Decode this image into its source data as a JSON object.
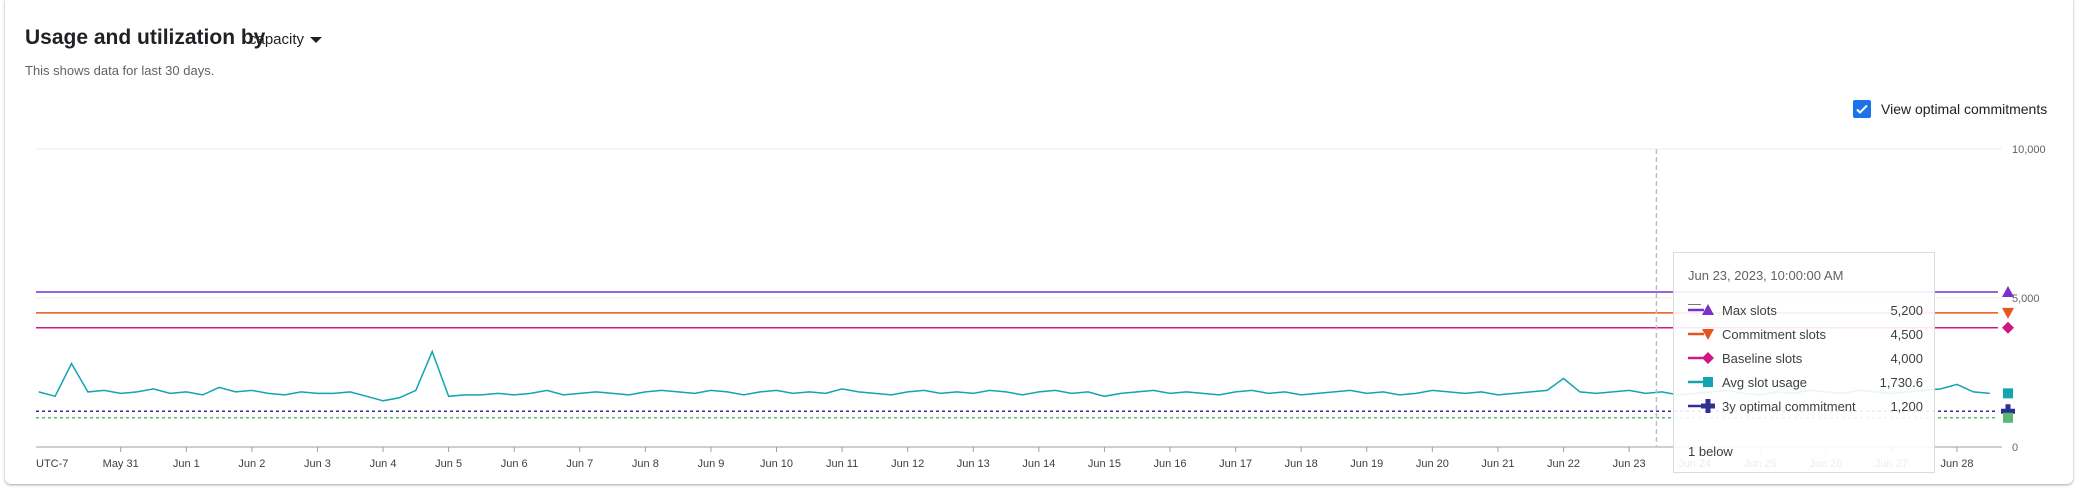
{
  "header": {
    "title": "Usage and utilization by",
    "dimension": "capacity",
    "subtitle": "This shows data for last 30 days."
  },
  "controls": {
    "view_optimal_label": "View optimal commitments",
    "view_optimal_checked": true
  },
  "tooltip": {
    "date": "Jun 23, 2023, 10:00:00 AM",
    "separator": "—",
    "rows": [
      {
        "name": "Max slots",
        "value": "5,200",
        "color": "#7b2fcf",
        "marker": "triangle-up"
      },
      {
        "name": "Commitment slots",
        "value": "4,500",
        "color": "#e8541e",
        "marker": "triangle-down"
      },
      {
        "name": "Baseline slots",
        "value": "4,000",
        "color": "#d01884",
        "marker": "diamond"
      },
      {
        "name": "Avg slot usage",
        "value": "1,730.6",
        "color": "#12a4af",
        "marker": "square"
      },
      {
        "name": "3y optimal commitment",
        "value": "1,200",
        "color": "#2e3192",
        "marker": "plus"
      }
    ],
    "more": "1 below"
  },
  "chart_data": {
    "type": "line",
    "timezone_label": "UTC-7",
    "x_tick_labels": [
      "May 31",
      "Jun 1",
      "Jun 2",
      "Jun 3",
      "Jun 4",
      "Jun 5",
      "Jun 6",
      "Jun 7",
      "Jun 8",
      "Jun 9",
      "Jun 10",
      "Jun 11",
      "Jun 12",
      "Jun 13",
      "Jun 14",
      "Jun 15",
      "Jun 16",
      "Jun 17",
      "Jun 18",
      "Jun 19",
      "Jun 20",
      "Jun 21",
      "Jun 22",
      "Jun 23",
      "Jun 24",
      "Jun 25",
      "Jun 26",
      "Jun 27",
      "Jun 28"
    ],
    "y_ticks": [
      0,
      5000,
      10000
    ],
    "y_tick_labels": [
      "0",
      "5,000",
      "10,000"
    ],
    "ylim": [
      0,
      10000
    ],
    "xlim": [
      "2023-05-29T17:00",
      "2023-06-28T15:00"
    ],
    "grid": true,
    "series": [
      {
        "name": "Max slots",
        "color": "#7b2fcf",
        "style": "solid",
        "marker": "triangle-up",
        "constant": 5200
      },
      {
        "name": "Commitment slots",
        "color": "#e8541e",
        "style": "solid",
        "marker": "triangle-down",
        "constant": 4500
      },
      {
        "name": "Baseline slots",
        "color": "#d01884",
        "style": "solid",
        "marker": "diamond",
        "constant": 4000
      },
      {
        "name": "Avg slot usage",
        "color": "#12a4af",
        "style": "solid",
        "marker": "square",
        "x_start": "2023-05-29T18:00",
        "x_step_hours": 6,
        "values": [
          1850,
          1700,
          2800,
          1850,
          1900,
          1800,
          1850,
          1950,
          1800,
          1850,
          1750,
          2000,
          1850,
          1900,
          1800,
          1750,
          1850,
          1800,
          1800,
          1850,
          1700,
          1550,
          1650,
          1900,
          3200,
          1700,
          1750,
          1750,
          1800,
          1750,
          1800,
          1900,
          1750,
          1800,
          1850,
          1800,
          1750,
          1850,
          1900,
          1850,
          1800,
          1900,
          1850,
          1750,
          1850,
          1900,
          1800,
          1850,
          1800,
          1950,
          1850,
          1800,
          1750,
          1850,
          1900,
          1800,
          1850,
          1800,
          1900,
          1850,
          1750,
          1850,
          1900,
          1800,
          1850,
          1700,
          1800,
          1850,
          1900,
          1800,
          1850,
          1800,
          1750,
          1850,
          1900,
          1800,
          1850,
          1750,
          1800,
          1850,
          1900,
          1800,
          1850,
          1750,
          1800,
          1900,
          1850,
          1800,
          1850,
          1750,
          1800,
          1850,
          1900,
          2300,
          1850,
          1800,
          1850,
          1900,
          1800,
          1850,
          1750,
          1800,
          1850,
          1900,
          1800,
          1750,
          1850,
          1800,
          1900,
          1850,
          1800,
          1900,
          1850,
          1800,
          1850,
          1900,
          1950,
          2100,
          1850,
          1800
        ]
      },
      {
        "name": "3y optimal commitment",
        "color": "#2e3192",
        "style": "dotted",
        "marker": "plus",
        "constant": 1200
      },
      {
        "color": "#5bb974",
        "style": "dotted",
        "marker": "square",
        "constant": 980
      }
    ],
    "crosshair": "2023-06-23T10:00"
  }
}
